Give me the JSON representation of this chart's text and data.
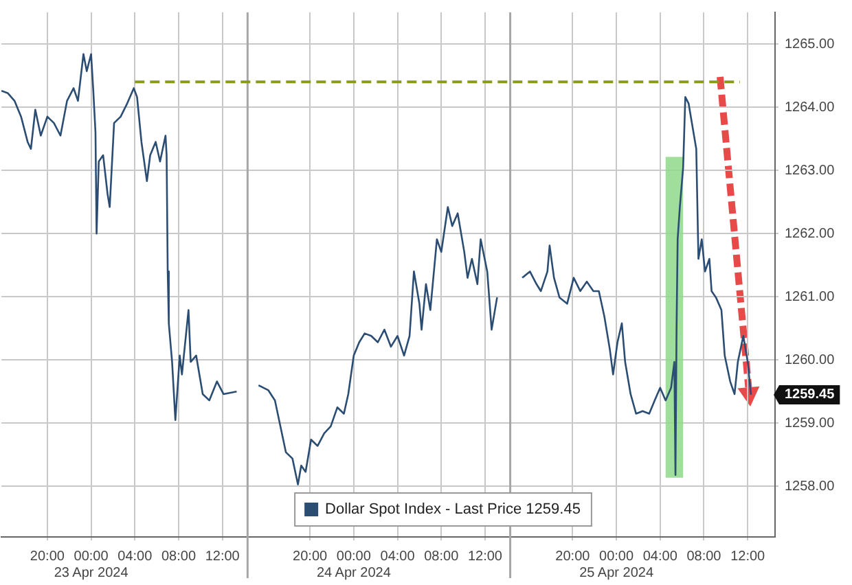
{
  "chart_data": {
    "type": "line",
    "xlim": [
      "2024-04-22T15:48",
      "2024-04-25T14:30"
    ],
    "xticks": [
      {
        "value": "2024-04-22T20:00",
        "label": "20:00"
      },
      {
        "value": "2024-04-23T00:00",
        "label": "00:00\n23 Apr 2024"
      },
      {
        "value": "2024-04-23T04:00",
        "label": "04:00"
      },
      {
        "value": "2024-04-23T08:00",
        "label": "08:00"
      },
      {
        "value": "2024-04-23T12:00",
        "label": "12:00"
      },
      {
        "value": "2024-04-23T20:00",
        "label": "20:00"
      },
      {
        "value": "2024-04-24T00:00",
        "label": "00:00\n24 Apr 2024"
      },
      {
        "value": "2024-04-24T04:00",
        "label": "04:00"
      },
      {
        "value": "2024-04-24T08:00",
        "label": "08:00"
      },
      {
        "value": "2024-04-24T12:00",
        "label": "12:00"
      },
      {
        "value": "2024-04-24T20:00",
        "label": "20:00"
      },
      {
        "value": "2024-04-25T00:00",
        "label": "00:00\n25 Apr 2024"
      },
      {
        "value": "2024-04-25T04:00",
        "label": "04:00"
      },
      {
        "value": "2024-04-25T08:00",
        "label": "08:00"
      },
      {
        "value": "2024-04-25T12:00",
        "label": "12:00"
      }
    ],
    "ylim": [
      1257.2,
      1265.5
    ],
    "yticks": [
      {
        "value": 1258,
        "label": "1258.00"
      },
      {
        "value": 1259,
        "label": "1259.00"
      },
      {
        "value": 1260,
        "label": "1260.00"
      },
      {
        "value": 1261,
        "label": "1261.00"
      },
      {
        "value": 1262,
        "label": "1262.00"
      },
      {
        "value": 1263,
        "label": "1263.00"
      },
      {
        "value": 1264,
        "label": "1264.00"
      },
      {
        "value": 1265,
        "label": "1265.00"
      }
    ],
    "grid": true,
    "legend": "bottom",
    "series": [
      {
        "name": "Dollar Spot Index - Last Price 1259.45",
        "color": "#2b4d73",
        "x": [
          "2024-04-22T15:48",
          "2024-04-22T16:24",
          "2024-04-22T17:00",
          "2024-04-22T17:36",
          "2024-04-22T18:12",
          "2024-04-22T18:30",
          "2024-04-22T18:54",
          "2024-04-22T19:24",
          "2024-04-22T20:00",
          "2024-04-22T20:36",
          "2024-04-22T21:12",
          "2024-04-22T21:48",
          "2024-04-22T22:24",
          "2024-04-22T22:48",
          "2024-04-22T23:18",
          "2024-04-22T23:36",
          "2024-04-23T00:00",
          "2024-04-23T00:12",
          "2024-04-23T00:24",
          "2024-04-23T00:30",
          "2024-04-23T00:42",
          "2024-04-23T01:06",
          "2024-04-23T01:30",
          "2024-04-23T01:42",
          "2024-04-23T02:06",
          "2024-04-23T02:42",
          "2024-04-23T03:18",
          "2024-04-23T03:54",
          "2024-04-23T04:12",
          "2024-04-23T04:36",
          "2024-04-23T05:06",
          "2024-04-23T05:24",
          "2024-04-23T05:54",
          "2024-04-23T06:18",
          "2024-04-23T06:48",
          "2024-04-23T06:54",
          "2024-04-23T07:00",
          "2024-04-23T07:06",
          "2024-04-23T07:24",
          "2024-04-23T07:42",
          "2024-04-23T08:06",
          "2024-04-23T08:18",
          "2024-04-23T08:54",
          "2024-04-23T09:06",
          "2024-04-23T09:36",
          "2024-04-23T10:12",
          "2024-04-23T10:48",
          "2024-04-23T11:30",
          "2024-04-23T12:06",
          "2024-04-23T13:18",
          "2024-04-23T14:18",
          "2024-04-23T15:18",
          "2024-04-23T16:12",
          "2024-04-23T16:48",
          "2024-04-23T17:18",
          "2024-04-23T17:48",
          "2024-04-23T18:24",
          "2024-04-23T18:54",
          "2024-04-23T19:12",
          "2024-04-23T19:36",
          "2024-04-23T20:06",
          "2024-04-23T20:42",
          "2024-04-23T21:18",
          "2024-04-23T21:54",
          "2024-04-23T22:30",
          "2024-04-23T23:06",
          "2024-04-23T23:30",
          "2024-04-24T00:00",
          "2024-04-24T00:30",
          "2024-04-24T01:00",
          "2024-04-24T01:36",
          "2024-04-24T02:12",
          "2024-04-24T02:48",
          "2024-04-24T03:24",
          "2024-04-24T04:00",
          "2024-04-24T04:36",
          "2024-04-24T05:06",
          "2024-04-24T05:30",
          "2024-04-24T06:00",
          "2024-04-24T06:12",
          "2024-04-24T06:36",
          "2024-04-24T07:00",
          "2024-04-24T07:36",
          "2024-04-24T08:00",
          "2024-04-24T08:36",
          "2024-04-24T09:00",
          "2024-04-24T09:30",
          "2024-04-24T10:06",
          "2024-04-24T10:24",
          "2024-04-24T10:48",
          "2024-04-24T11:18",
          "2024-04-24T11:36",
          "2024-04-24T12:12",
          "2024-04-24T12:36",
          "2024-04-24T13:06",
          "2024-04-24T14:18",
          "2024-04-24T15:24",
          "2024-04-24T16:06",
          "2024-04-24T16:42",
          "2024-04-24T17:06",
          "2024-04-24T17:42",
          "2024-04-24T17:54",
          "2024-04-24T18:18",
          "2024-04-24T18:48",
          "2024-04-24T19:30",
          "2024-04-24T20:06",
          "2024-04-24T20:42",
          "2024-04-24T21:18",
          "2024-04-24T21:54",
          "2024-04-24T22:24",
          "2024-04-24T22:54",
          "2024-04-24T23:24",
          "2024-04-24T23:42",
          "2024-04-25T00:06",
          "2024-04-25T00:30",
          "2024-04-25T00:48",
          "2024-04-25T01:18",
          "2024-04-25T01:48",
          "2024-04-25T02:24",
          "2024-04-25T03:00",
          "2024-04-25T03:30",
          "2024-04-25T04:00",
          "2024-04-25T04:30",
          "2024-04-25T05:00",
          "2024-04-25T05:18",
          "2024-04-25T05:24",
          "2024-04-25T05:30",
          "2024-04-25T05:36",
          "2024-04-25T05:48",
          "2024-04-25T06:06",
          "2024-04-25T06:18",
          "2024-04-25T06:36",
          "2024-04-25T06:54",
          "2024-04-25T07:18",
          "2024-04-25T07:30",
          "2024-04-25T07:48",
          "2024-04-25T08:06",
          "2024-04-25T08:30",
          "2024-04-25T08:42",
          "2024-04-25T09:06",
          "2024-04-25T09:36",
          "2024-04-25T09:54",
          "2024-04-25T10:24",
          "2024-04-25T10:48",
          "2024-04-25T11:06",
          "2024-04-25T11:36",
          "2024-04-25T12:00",
          "2024-04-25T12:18"
        ],
        "values": [
          1264.26,
          1264.22,
          1264.1,
          1263.85,
          1263.45,
          1263.34,
          1263.96,
          1263.55,
          1263.85,
          1263.75,
          1263.55,
          1264.1,
          1264.3,
          1264.1,
          1264.84,
          1264.57,
          1264.84,
          1264.26,
          1263.6,
          1262.0,
          1263.14,
          1263.24,
          1262.63,
          1262.42,
          1263.75,
          1263.85,
          1264.06,
          1264.3,
          1264.16,
          1263.45,
          1262.83,
          1263.24,
          1263.45,
          1263.14,
          1263.55,
          1263.24,
          1261.4,
          1260.58,
          1259.97,
          1259.05,
          1260.07,
          1259.77,
          1260.79,
          1259.97,
          1260.07,
          1259.46,
          1259.36,
          1259.66,
          1259.46,
          1259.5,
          null,
          1259.6,
          1259.52,
          1259.36,
          1258.95,
          1258.54,
          1258.44,
          1258.03,
          1258.33,
          1258.23,
          1258.74,
          1258.64,
          1258.84,
          1258.95,
          1259.25,
          1259.15,
          1259.46,
          1260.07,
          1260.28,
          1260.42,
          1260.38,
          1260.28,
          1260.48,
          1260.21,
          1260.38,
          1260.07,
          1260.38,
          1261.4,
          1260.89,
          1260.48,
          1261.2,
          1260.79,
          1261.91,
          1261.71,
          1262.42,
          1262.12,
          1262.32,
          1261.71,
          1261.3,
          1261.6,
          1261.2,
          1261.91,
          1261.4,
          1260.48,
          1260.99,
          null,
          1261.3,
          1261.4,
          1261.2,
          1261.09,
          1261.4,
          1261.81,
          1261.3,
          1260.99,
          1260.89,
          1261.3,
          1261.09,
          1261.24,
          1261.09,
          1261.09,
          1260.69,
          1260.17,
          1259.77,
          1260.28,
          1260.58,
          1259.97,
          1259.46,
          1259.15,
          1259.19,
          1259.15,
          1259.36,
          1259.56,
          1259.36,
          1259.56,
          1259.97,
          1258.18,
          1260.5,
          1261.91,
          1262.42,
          1263.04,
          1264.16,
          1264.06,
          1263.75,
          1263.34,
          1261.6,
          1261.91,
          1261.4,
          1261.6,
          1261.09,
          1260.99,
          1260.79,
          1260.07,
          1259.66,
          1259.46,
          1259.97,
          1260.38,
          1259.97,
          1259.45
        ]
      },
      {
        "color": "#8c9a1c",
        "line_style": "dashed",
        "x": [
          "2024-04-23T04:00",
          "2024-04-25T11:18"
        ],
        "values": [
          1264.4,
          1264.4
        ]
      }
    ],
    "ref_lines": [
      {
        "axis": "x",
        "value": "2024-04-23T14:18",
        "color": "#a6a6a6",
        "line_style": "solid"
      },
      {
        "axis": "x",
        "value": "2024-04-24T14:18",
        "color": "#a6a6a6",
        "line_style": "solid"
      }
    ],
    "bands": [
      {
        "axis": "x",
        "from": "2024-04-25T04:30",
        "to": "2024-04-25T06:06",
        "color": "#8fd88a"
      }
    ],
    "annotations": [
      {
        "text": "1259.45",
        "x": "2024-04-25T12:18",
        "y": 1259.45
      }
    ]
  }
}
